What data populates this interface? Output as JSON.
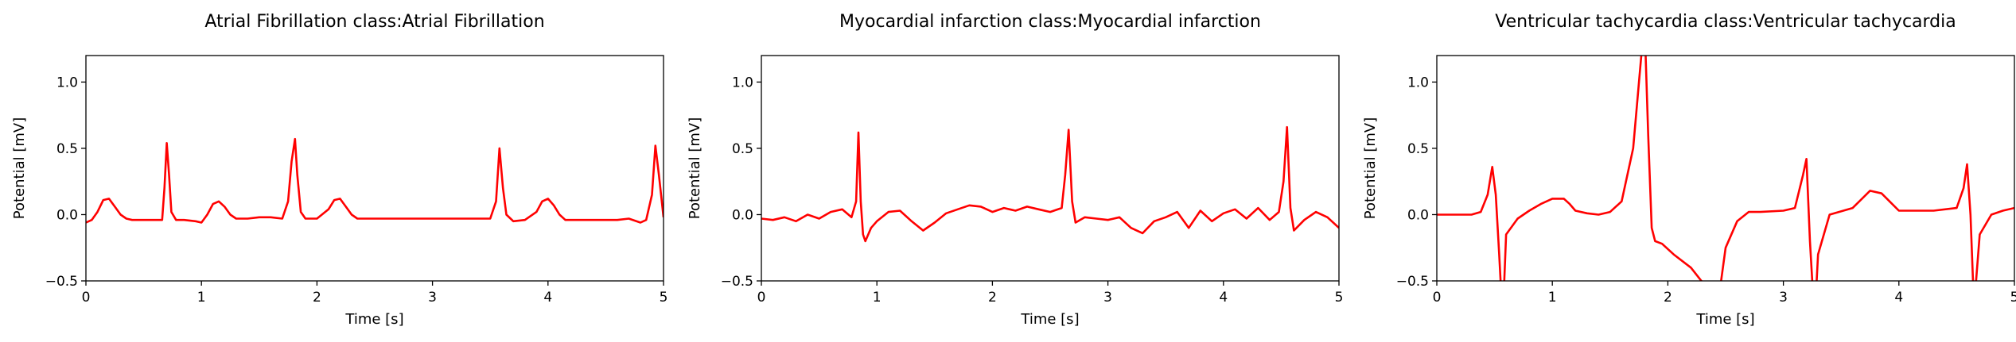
{
  "colors": {
    "trace": "#ff0000",
    "axes": "#000000",
    "background": "#ffffff"
  },
  "chart_data": [
    {
      "type": "line",
      "title": "Atrial Fibrillation class:Atrial Fibrillation",
      "xlabel": "Time [s]",
      "ylabel": "Potential [mV]",
      "xlim": [
        0,
        5
      ],
      "ylim": [
        -0.5,
        1.2
      ],
      "xticks": [
        "0",
        "1",
        "2",
        "3",
        "4",
        "5"
      ],
      "yticks": [
        "−0.5",
        "0.0",
        "0.5",
        "1.0"
      ],
      "grid": false,
      "series": [
        {
          "x": [
            0,
            0.05,
            0.1,
            0.15,
            0.2,
            0.25,
            0.3,
            0.35,
            0.4,
            0.5,
            0.6,
            0.66,
            0.68,
            0.7,
            0.72,
            0.74,
            0.78,
            0.85,
            0.95,
            1.0,
            1.05,
            1.1,
            1.15,
            1.2,
            1.25,
            1.3,
            1.4,
            1.5,
            1.6,
            1.7,
            1.75,
            1.78,
            1.81,
            1.83,
            1.86,
            1.9,
            2.0,
            2.1,
            2.15,
            2.2,
            2.25,
            2.3,
            2.35,
            2.4,
            2.5,
            2.8,
            3.1,
            3.4,
            3.5,
            3.55,
            3.58,
            3.61,
            3.64,
            3.7,
            3.8,
            3.9,
            3.95,
            4.0,
            4.05,
            4.1,
            4.15,
            4.2,
            4.3,
            4.5,
            4.6,
            4.7,
            4.8,
            4.85,
            4.9,
            4.93,
            4.96,
            5.0
          ],
          "y": [
            -0.06,
            -0.04,
            0.02,
            0.11,
            0.12,
            0.06,
            0.0,
            -0.03,
            -0.04,
            -0.04,
            -0.04,
            -0.04,
            0.2,
            0.54,
            0.3,
            0.02,
            -0.04,
            -0.04,
            -0.05,
            -0.06,
            0.0,
            0.08,
            0.1,
            0.06,
            0.0,
            -0.03,
            -0.03,
            -0.02,
            -0.02,
            -0.03,
            0.1,
            0.4,
            0.57,
            0.3,
            0.02,
            -0.03,
            -0.03,
            0.04,
            0.11,
            0.12,
            0.06,
            0.0,
            -0.03,
            -0.03,
            -0.03,
            -0.03,
            -0.03,
            -0.03,
            -0.03,
            0.1,
            0.5,
            0.2,
            0.0,
            -0.05,
            -0.04,
            0.02,
            0.1,
            0.12,
            0.07,
            0.0,
            -0.04,
            -0.04,
            -0.04,
            -0.04,
            -0.04,
            -0.03,
            -0.06,
            -0.04,
            0.15,
            0.52,
            0.3,
            -0.02
          ]
        }
      ]
    },
    {
      "type": "line",
      "title": "Myocardial infarction class:Myocardial infarction",
      "xlabel": "Time [s]",
      "ylabel": "Potential [mV]",
      "xlim": [
        0,
        5
      ],
      "ylim": [
        -0.5,
        1.2
      ],
      "xticks": [
        "0",
        "1",
        "2",
        "3",
        "4",
        "5"
      ],
      "yticks": [
        "−0.5",
        "0.0",
        "0.5",
        "1.0"
      ],
      "grid": false,
      "series": [
        {
          "x": [
            0,
            0.1,
            0.2,
            0.3,
            0.4,
            0.5,
            0.6,
            0.7,
            0.78,
            0.82,
            0.84,
            0.86,
            0.88,
            0.9,
            0.95,
            1.0,
            1.1,
            1.2,
            1.3,
            1.4,
            1.5,
            1.6,
            1.7,
            1.8,
            1.9,
            2.0,
            2.1,
            2.2,
            2.3,
            2.4,
            2.5,
            2.6,
            2.63,
            2.66,
            2.69,
            2.72,
            2.8,
            2.9,
            3.0,
            3.1,
            3.2,
            3.3,
            3.4,
            3.5,
            3.6,
            3.7,
            3.8,
            3.9,
            4.0,
            4.1,
            4.2,
            4.3,
            4.4,
            4.48,
            4.52,
            4.55,
            4.58,
            4.61,
            4.7,
            4.8,
            4.9,
            5.0
          ],
          "y": [
            -0.03,
            -0.04,
            -0.02,
            -0.05,
            0.0,
            -0.03,
            0.02,
            0.04,
            -0.02,
            0.1,
            0.62,
            0.1,
            -0.15,
            -0.2,
            -0.1,
            -0.05,
            0.02,
            0.03,
            -0.05,
            -0.12,
            -0.06,
            0.01,
            0.04,
            0.07,
            0.06,
            0.02,
            0.05,
            0.03,
            0.06,
            0.04,
            0.02,
            0.05,
            0.3,
            0.64,
            0.1,
            -0.06,
            -0.02,
            -0.03,
            -0.04,
            -0.02,
            -0.1,
            -0.14,
            -0.05,
            -0.02,
            0.02,
            -0.1,
            0.03,
            -0.05,
            0.01,
            0.04,
            -0.03,
            0.05,
            -0.04,
            0.02,
            0.25,
            0.66,
            0.05,
            -0.12,
            -0.04,
            0.02,
            -0.02,
            -0.1
          ]
        }
      ]
    },
    {
      "type": "line",
      "title": "Ventricular tachycardia class:Ventricular tachycardia",
      "xlabel": "Time [s]",
      "ylabel": "Potential [mV]",
      "xlim": [
        0,
        5
      ],
      "ylim": [
        -0.5,
        1.2
      ],
      "xticks": [
        "0",
        "1",
        "2",
        "3",
        "4",
        "5"
      ],
      "yticks": [
        "−0.5",
        "0.0",
        "0.5",
        "1.0"
      ],
      "grid": false,
      "series": [
        {
          "x": [
            0,
            0.2,
            0.3,
            0.38,
            0.44,
            0.48,
            0.51,
            0.54,
            0.57,
            0.6,
            0.7,
            0.75,
            0.8,
            0.9,
            1.0,
            1.1,
            1.15,
            1.2,
            1.3,
            1.4,
            1.5,
            1.6,
            1.7,
            1.75,
            1.78,
            1.8,
            1.83,
            1.86,
            1.89,
            1.95,
            2.05,
            2.2,
            2.38,
            2.43,
            2.5,
            2.6,
            2.7,
            2.8,
            3.0,
            3.1,
            3.17,
            3.2,
            3.23,
            3.27,
            3.3,
            3.4,
            3.6,
            3.75,
            3.85,
            4.0,
            4.3,
            4.5,
            4.56,
            4.59,
            4.62,
            4.65,
            4.7,
            4.8,
            4.9,
            5.0
          ],
          "y": [
            0.0,
            0.0,
            0.0,
            0.02,
            0.15,
            0.36,
            0.15,
            -0.3,
            -0.8,
            -0.15,
            -0.03,
            0.0,
            0.03,
            0.08,
            0.12,
            0.12,
            0.08,
            0.03,
            0.01,
            0.0,
            0.02,
            0.1,
            0.5,
            1.0,
            1.3,
            1.4,
            0.6,
            -0.1,
            -0.2,
            -0.22,
            -0.3,
            -0.4,
            -0.6,
            -0.7,
            -0.25,
            -0.05,
            0.02,
            0.02,
            0.03,
            0.05,
            0.3,
            0.42,
            -0.2,
            -0.8,
            -0.3,
            0.0,
            0.05,
            0.18,
            0.16,
            0.03,
            0.03,
            0.05,
            0.2,
            0.38,
            0.0,
            -0.7,
            -0.15,
            0.0,
            0.03,
            0.05
          ]
        }
      ]
    }
  ]
}
